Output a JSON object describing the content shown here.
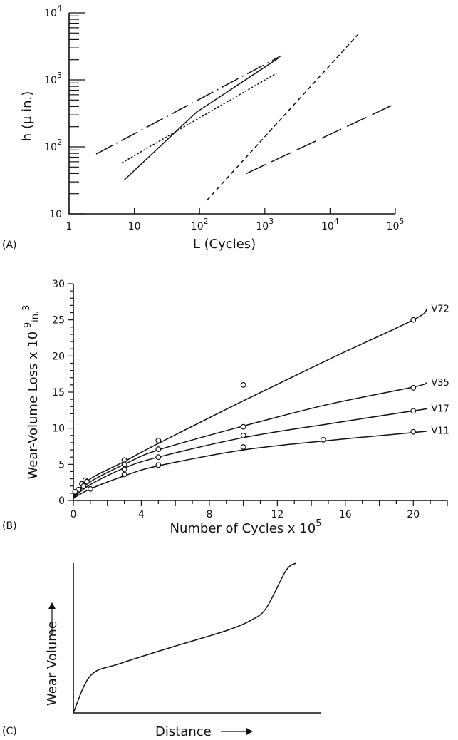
{
  "chart_data": [
    {
      "panel": "(A)",
      "type": "line",
      "xlabel": "L (Cycles)",
      "ylabel": "h (μ in.)",
      "xscale": "log",
      "yscale": "log",
      "xlim": [
        1,
        100000
      ],
      "ylim": [
        10,
        10000
      ],
      "x_ticks": [
        {
          "value": 1,
          "base": "1",
          "exp": ""
        },
        {
          "value": 10,
          "base": "10",
          "exp": ""
        },
        {
          "value": 100,
          "base": "10",
          "exp": "2"
        },
        {
          "value": 1000,
          "base": "10",
          "exp": "3"
        },
        {
          "value": 10000,
          "base": "10",
          "exp": "4"
        },
        {
          "value": 100000,
          "base": "10",
          "exp": "5"
        }
      ],
      "y_ticks": [
        {
          "value": 10,
          "base": "10",
          "exp": ""
        },
        {
          "value": 100,
          "base": "10",
          "exp": "2"
        },
        {
          "value": 1000,
          "base": "10",
          "exp": "3"
        },
        {
          "value": 10000,
          "base": "10",
          "exp": "4"
        }
      ],
      "series": [
        {
          "style": "dash-dot",
          "x": [
            2.6,
            1800
          ],
          "y": [
            78,
            2300
          ]
        },
        {
          "style": "dotted",
          "x": [
            6.5,
            1500
          ],
          "y": [
            58,
            1250
          ]
        },
        {
          "style": "solid",
          "x": [
            7,
            90,
            1600
          ],
          "y": [
            32,
            330,
            2100
          ]
        },
        {
          "style": "short-dash",
          "x": [
            130,
            27000
          ],
          "y": [
            16,
            4800
          ]
        },
        {
          "style": "long-dash",
          "x": [
            520,
            95000
          ],
          "y": [
            40,
            430
          ]
        }
      ]
    },
    {
      "panel": "(B)",
      "type": "line",
      "xlabel_base": "Number of Cycles x 10",
      "xlabel_exp": "5",
      "ylabel_base": "Wear-Volume Loss x 10",
      "ylabel_exp": "-9",
      "ylabel_unit": "in.",
      "ylabel_unit_exp": "3",
      "xlim": [
        0,
        22
      ],
      "ylim": [
        0,
        30
      ],
      "x_ticks": [
        0,
        4,
        8,
        12,
        16,
        20
      ],
      "y_ticks": [
        0,
        5,
        10,
        15,
        20,
        25,
        30
      ],
      "series": [
        {
          "name": "V72",
          "curve_x": [
            0,
            1,
            3,
            5,
            10,
            15,
            20,
            20.8
          ],
          "curve_y": [
            0.6,
            3.0,
            5.4,
            7.9,
            13.8,
            19.5,
            25.0,
            26.5
          ],
          "points_x": [
            0.3,
            0.7,
            3,
            5,
            10,
            20
          ],
          "points_y": [
            1.5,
            2.8,
            5.6,
            8.3,
            16.0,
            25.0
          ]
        },
        {
          "name": "V35",
          "curve_x": [
            0,
            1,
            3,
            5,
            10,
            15,
            20,
            20.8
          ],
          "curve_y": [
            0.5,
            2.6,
            5.0,
            7.0,
            10.3,
            13.3,
            15.7,
            16.3
          ],
          "points_x": [
            0.5,
            0.8,
            3,
            5,
            10,
            20
          ],
          "points_y": [
            2.3,
            2.6,
            5.0,
            7.1,
            10.2,
            15.6
          ]
        },
        {
          "name": "V17",
          "curve_x": [
            0,
            1,
            3,
            5,
            10,
            15,
            20,
            20.8
          ],
          "curve_y": [
            0.4,
            2.2,
            4.5,
            6.0,
            8.7,
            10.6,
            12.4,
            12.7
          ],
          "points_x": [
            0.6,
            3,
            5,
            10,
            20
          ],
          "points_y": [
            2.0,
            4.3,
            6.0,
            9.0,
            12.4
          ]
        },
        {
          "name": "V11",
          "curve_x": [
            0,
            1,
            3,
            5,
            10,
            15,
            20,
            20.8
          ],
          "curve_y": [
            0.3,
            1.6,
            3.4,
            4.8,
            7.0,
            8.3,
            9.4,
            9.6
          ],
          "points_x": [
            0.1,
            1,
            3,
            5,
            10,
            14.7,
            20
          ],
          "points_y": [
            1.2,
            1.6,
            3.6,
            4.9,
            7.4,
            8.4,
            9.5
          ]
        }
      ]
    },
    {
      "panel": "(C)",
      "type": "line",
      "xlabel": "Distance",
      "ylabel": "Wear Volume",
      "x_ticks": [],
      "y_ticks": [],
      "series": [
        {
          "x": [
            0,
            0.07,
            0.19,
            0.4,
            0.62,
            0.72,
            0.78,
            0.86,
            0.9
          ],
          "y": [
            0,
            0.25,
            0.33,
            0.44,
            0.55,
            0.62,
            0.7,
            0.95,
            1.0
          ]
        }
      ]
    }
  ]
}
